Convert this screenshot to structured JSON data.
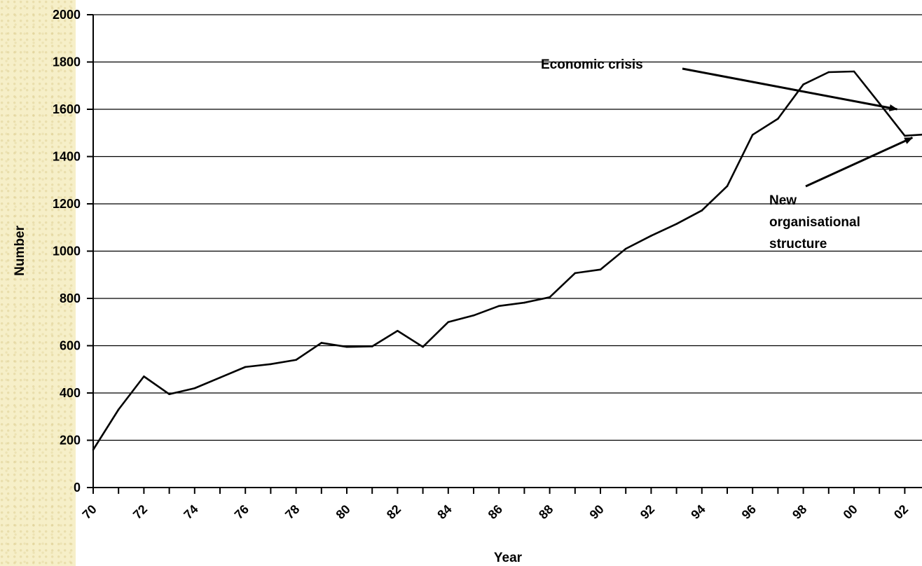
{
  "chart_data": {
    "type": "line",
    "title": "",
    "xlabel": "Year",
    "ylabel": "Number",
    "ylim": [
      0,
      2000
    ],
    "y_ticks": [
      0,
      200,
      400,
      600,
      800,
      1000,
      1200,
      1400,
      1600,
      1800,
      2000
    ],
    "y_tick_labels": [
      "0",
      "200",
      "400",
      "600",
      "800",
      "1000",
      "1200",
      "1400",
      "1600",
      "1800",
      "2000"
    ],
    "x_tick_labels": [
      "70",
      "72",
      "74",
      "76",
      "78",
      "80",
      "82",
      "84",
      "86",
      "88",
      "90",
      "92",
      "94",
      "96",
      "98",
      "00",
      "02"
    ],
    "grid": true,
    "series": [
      {
        "values": [
          {
            "year": 1970,
            "value": 160
          },
          {
            "year": 1971,
            "value": 330
          },
          {
            "year": 1972,
            "value": 470
          },
          {
            "year": 1973,
            "value": 395
          },
          {
            "year": 1974,
            "value": 420
          },
          {
            "year": 1975,
            "value": 465
          },
          {
            "year": 1976,
            "value": 510
          },
          {
            "year": 1977,
            "value": 522
          },
          {
            "year": 1978,
            "value": 540
          },
          {
            "year": 1979,
            "value": 612
          },
          {
            "year": 1980,
            "value": 595
          },
          {
            "year": 1981,
            "value": 597
          },
          {
            "year": 1982,
            "value": 663
          },
          {
            "year": 1983,
            "value": 595
          },
          {
            "year": 1984,
            "value": 700
          },
          {
            "year": 1985,
            "value": 728
          },
          {
            "year": 1986,
            "value": 768
          },
          {
            "year": 1987,
            "value": 782
          },
          {
            "year": 1988,
            "value": 805
          },
          {
            "year": 1989,
            "value": 907
          },
          {
            "year": 1990,
            "value": 922
          },
          {
            "year": 1991,
            "value": 1010
          },
          {
            "year": 1992,
            "value": 1065
          },
          {
            "year": 1993,
            "value": 1115
          },
          {
            "year": 1994,
            "value": 1172
          },
          {
            "year": 1995,
            "value": 1275
          },
          {
            "year": 1996,
            "value": 1492
          },
          {
            "year": 1997,
            "value": 1560
          },
          {
            "year": 1998,
            "value": 1705
          },
          {
            "year": 1999,
            "value": 1757
          },
          {
            "year": 2000,
            "value": 1760
          },
          {
            "year": 2001,
            "value": 1625
          },
          {
            "year": 2002,
            "value": 1488
          },
          {
            "year": 2003,
            "value": 1495
          }
        ]
      }
    ],
    "annotations": [
      {
        "id": "economic-crisis",
        "text": "Economic crisis",
        "points_to": {
          "year": 2001.7,
          "value": 1600
        }
      },
      {
        "id": "new-org",
        "lines": [
          "New",
          "organisational",
          "structure"
        ],
        "points_to": {
          "year": 2002.3,
          "value": 1480
        }
      }
    ]
  }
}
